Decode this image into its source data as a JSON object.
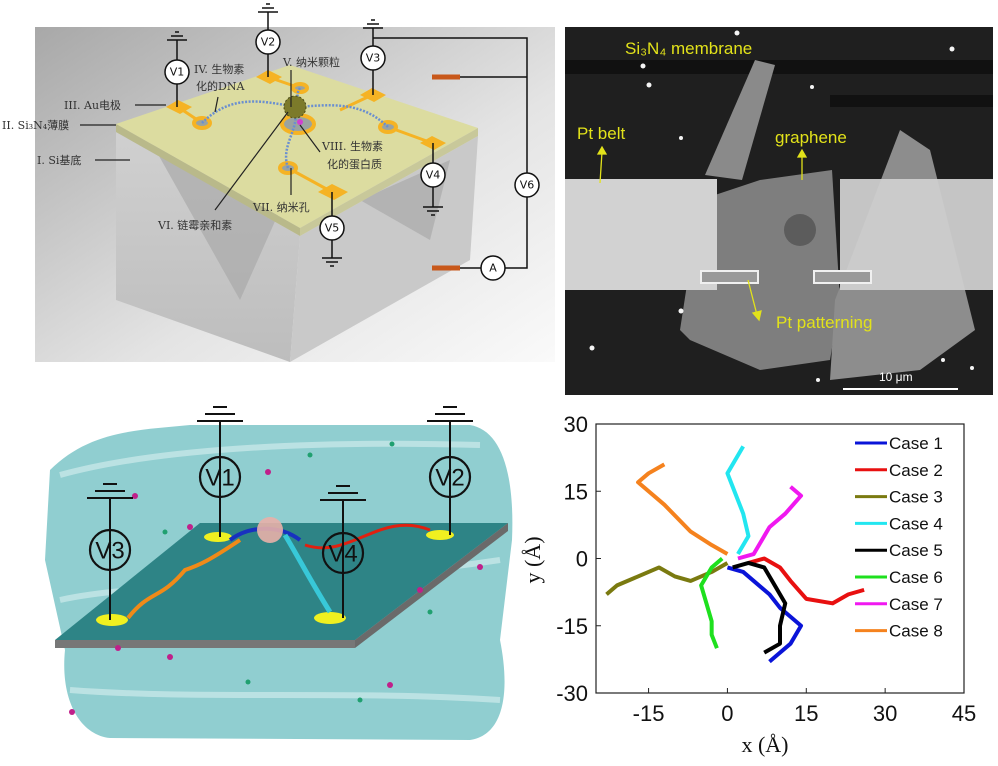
{
  "panel_a": {
    "labels": {
      "substrate": "I. Si基底",
      "membrane": "II. Si₃N₄薄膜",
      "electrode": "III. Au电极",
      "dna_line1": "IV. 生物素",
      "dna_line2": "化的DNA",
      "nanoparticle": "V. 纳米颗粒",
      "streptavidin": "VI. 链霉亲和素",
      "nanopore": "VII. 纳米孔",
      "protein_line1": "VIII. 生物素",
      "protein_line2": "化的蛋白质"
    },
    "meters": {
      "v1": "V1",
      "v2": "V2",
      "v3": "V3",
      "v4": "V4",
      "v5": "V5",
      "v6": "V6",
      "ammeter": "A"
    },
    "colors": {
      "electrode": "#f5b324",
      "membrane": "#dcdca0",
      "wire_electrode": "#c8581a"
    }
  },
  "panel_b": {
    "labels": {
      "membrane": "Si₃N₄ membrane",
      "pt_belt": "Pt belt",
      "graphene": "graphene",
      "pt_patterning": "Pt patterning",
      "scale_bar": "10 μm"
    },
    "colors": {
      "annotation": "#e2e21a"
    }
  },
  "panel_c": {
    "meters": {
      "v1": "V1",
      "v2": "V2",
      "v3": "V3",
      "v4": "V4"
    },
    "colors": {
      "water": "#6fc2c4",
      "graphene": "#707070"
    }
  },
  "chart_data": {
    "type": "line",
    "title": "",
    "xlabel": "x (Å)",
    "ylabel": "y (Å)",
    "xlim": [
      -25,
      45
    ],
    "ylim": [
      -30,
      30
    ],
    "xticks": [
      "-15",
      "0",
      "15",
      "30",
      "45"
    ],
    "xtick_values": [
      -15,
      0,
      15,
      30,
      45
    ],
    "yticks": [
      "30",
      "15",
      "0",
      "-15",
      "-30"
    ],
    "ytick_values": [
      30,
      15,
      0,
      -15,
      -30
    ],
    "grid": false,
    "legend_position": "top-right",
    "series": [
      {
        "name": "Case 1",
        "color": "#0a14d8",
        "points": [
          [
            0,
            -2
          ],
          [
            3,
            -3
          ],
          [
            5,
            -5
          ],
          [
            8,
            -8
          ],
          [
            10,
            -11
          ],
          [
            12,
            -13
          ],
          [
            14,
            -15
          ],
          [
            12,
            -19
          ],
          [
            9,
            -22
          ],
          [
            8,
            -23
          ]
        ]
      },
      {
        "name": "Case 2",
        "color": "#e81010",
        "points": [
          [
            4,
            -1
          ],
          [
            7,
            0
          ],
          [
            10,
            -2
          ],
          [
            12,
            -5
          ],
          [
            15,
            -9
          ],
          [
            20,
            -10
          ],
          [
            23,
            -8
          ],
          [
            26,
            -7
          ]
        ]
      },
      {
        "name": "Case 3",
        "color": "#7a7a10",
        "points": [
          [
            0,
            -1
          ],
          [
            -3,
            -3
          ],
          [
            -7,
            -5
          ],
          [
            -10,
            -4
          ],
          [
            -13,
            -2
          ],
          [
            -17,
            -4
          ],
          [
            -21,
            -6
          ],
          [
            -23,
            -8
          ]
        ]
      },
      {
        "name": "Case 4",
        "color": "#22e6f0",
        "points": [
          [
            2,
            1
          ],
          [
            4,
            5
          ],
          [
            3,
            10
          ],
          [
            1,
            16
          ],
          [
            0,
            19
          ],
          [
            2,
            23
          ],
          [
            3,
            25
          ]
        ]
      },
      {
        "name": "Case 5",
        "color": "#000000",
        "points": [
          [
            1,
            -2
          ],
          [
            4,
            -1
          ],
          [
            7,
            -2
          ],
          [
            9,
            -6
          ],
          [
            11,
            -10
          ],
          [
            10,
            -15
          ],
          [
            10,
            -19
          ],
          [
            7,
            -21
          ]
        ]
      },
      {
        "name": "Case 6",
        "color": "#1ee01e",
        "points": [
          [
            -1,
            0
          ],
          [
            -3,
            -2
          ],
          [
            -5,
            -6
          ],
          [
            -4,
            -10
          ],
          [
            -3,
            -14
          ],
          [
            -3,
            -17
          ],
          [
            -2,
            -20
          ]
        ]
      },
      {
        "name": "Case 7",
        "color": "#f018f0",
        "points": [
          [
            2,
            0
          ],
          [
            5,
            1
          ],
          [
            8,
            7
          ],
          [
            11,
            10
          ],
          [
            14,
            14
          ],
          [
            12,
            16
          ]
        ]
      },
      {
        "name": "Case 8",
        "color": "#f5821e",
        "points": [
          [
            0,
            1
          ],
          [
            -3,
            3
          ],
          [
            -7,
            6
          ],
          [
            -12,
            12
          ],
          [
            -17,
            17
          ],
          [
            -15,
            19
          ],
          [
            -12,
            21
          ]
        ]
      }
    ]
  }
}
